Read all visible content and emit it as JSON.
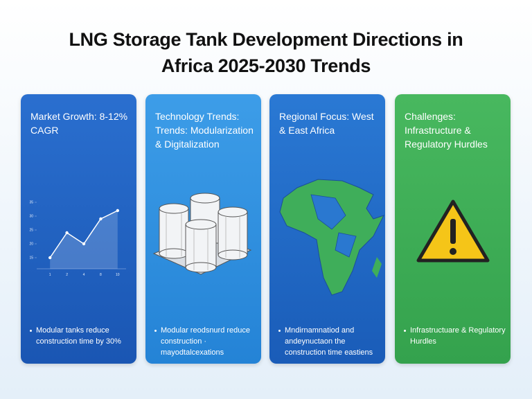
{
  "title": "LNG Storage Tank Development Directions in Africa 2025-2030 Trends",
  "cards": [
    {
      "heading": "Market Growth: 8-12% CAGR",
      "bullet": "Modular tanks reduce construction time by 30%",
      "chart": {
        "type": "line",
        "categories": [
          "1",
          "2",
          "4",
          "8",
          "10"
        ],
        "values": [
          15,
          24,
          20,
          29,
          32
        ],
        "ylim": [
          12,
          37
        ],
        "yticks": [
          15,
          20,
          25,
          30,
          35
        ],
        "color": "#ffffff"
      }
    },
    {
      "heading": "Technology Trends: Trends: Modularization & Digitalization",
      "bullet": "Modular reodsnurd reduce construction · mayodtalcexations"
    },
    {
      "heading": "Regional Focus: West & East Africa",
      "bullet": "Mndirnamnatiod and andeynuctaon the construction time eastiens"
    },
    {
      "heading": "Challenges: Infrastructure & Regulatory Hurdles",
      "bullet": "Infrastructuare & Regulatory Hurdles"
    }
  ]
}
